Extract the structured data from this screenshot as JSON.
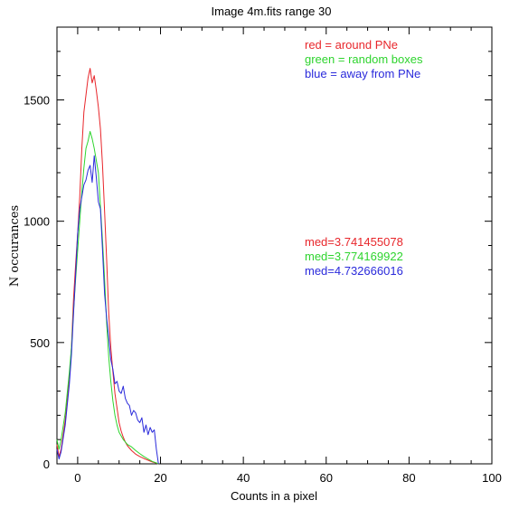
{
  "chart_data": {
    "type": "line",
    "title": "Image 4m.fits   range 30",
    "xlabel": "Counts in a pixel",
    "ylabel": "N occurances",
    "xlim": [
      -5,
      100
    ],
    "ylim": [
      0,
      1800
    ],
    "x_ticks": [
      0,
      20,
      40,
      60,
      80,
      100
    ],
    "y_ticks": [
      0,
      500,
      1000,
      1500
    ],
    "x_tick_labels": [
      "0",
      "20",
      "40",
      "60",
      "80",
      "100"
    ],
    "y_tick_labels": [
      "0",
      "500",
      "1000",
      "1500"
    ],
    "legend": [
      {
        "text": "red = around PNe",
        "color": "#e8262b"
      },
      {
        "text": "green = random boxes",
        "color": "#2ed42e"
      },
      {
        "text": "blue = away from PNe",
        "color": "#2a2adb"
      }
    ],
    "medians": [
      {
        "text": "med=3.741455078",
        "color": "#e8262b"
      },
      {
        "text": "med=3.774169922",
        "color": "#2ed42e"
      },
      {
        "text": "med=4.732666016",
        "color": "#2a2adb"
      }
    ],
    "series": [
      {
        "color": "#e8262b",
        "x": [
          -5,
          -4.5,
          -4,
          -3,
          -2,
          -1.5,
          -1,
          -0.5,
          0,
          0.5,
          1,
          1.5,
          2,
          2.5,
          3,
          3.5,
          4,
          4.5,
          5,
          5.5,
          6,
          6.5,
          7,
          7.5,
          8,
          8.5,
          9,
          9.5,
          10,
          10.5,
          11,
          11.5,
          12,
          13,
          14,
          15,
          16,
          17,
          18,
          19,
          19.5
        ],
        "y": [
          80,
          30,
          60,
          180,
          350,
          480,
          680,
          820,
          950,
          1100,
          1300,
          1450,
          1520,
          1590,
          1630,
          1570,
          1600,
          1540,
          1470,
          1380,
          1230,
          1040,
          840,
          620,
          480,
          380,
          290,
          230,
          170,
          135,
          110,
          90,
          75,
          55,
          40,
          30,
          22,
          15,
          8,
          3,
          0
        ]
      },
      {
        "color": "#2ed42e",
        "x": [
          -5,
          -4.5,
          -4,
          -3,
          -2,
          -1.5,
          -1,
          -0.5,
          0,
          0.5,
          1,
          1.5,
          2,
          2.5,
          3,
          3.5,
          4,
          4.5,
          5,
          5.5,
          6,
          6.5,
          7,
          7.5,
          8,
          8.5,
          9,
          9.5,
          10,
          10.5,
          11,
          11.5,
          12,
          13,
          14,
          15,
          16,
          17,
          18,
          19,
          19.5
        ],
        "y": [
          100,
          60,
          100,
          210,
          380,
          480,
          630,
          760,
          880,
          1000,
          1120,
          1220,
          1300,
          1330,
          1370,
          1340,
          1300,
          1250,
          1200,
          1060,
          920,
          760,
          580,
          440,
          340,
          260,
          200,
          160,
          130,
          115,
          100,
          90,
          80,
          70,
          55,
          42,
          30,
          20,
          10,
          4,
          0
        ]
      },
      {
        "color": "#2a2adb",
        "x": [
          -5,
          -4.5,
          -4,
          -3,
          -2,
          -1.5,
          -1,
          -0.5,
          0,
          0.5,
          1,
          1.5,
          2,
          2.5,
          3,
          3.5,
          4,
          4.5,
          5,
          5.5,
          6,
          6.5,
          7,
          7.5,
          8,
          8.5,
          9,
          9.5,
          10,
          10.5,
          11,
          11.5,
          12,
          12.5,
          13,
          13.5,
          14,
          14.5,
          15,
          15.5,
          16,
          16.5,
          17,
          17.5,
          18,
          18.5,
          19,
          19.5
        ],
        "y": [
          60,
          20,
          50,
          160,
          330,
          450,
          620,
          780,
          950,
          1050,
          1100,
          1150,
          1170,
          1210,
          1230,
          1160,
          1270,
          1180,
          1080,
          1050,
          880,
          700,
          600,
          520,
          430,
          390,
          330,
          340,
          300,
          290,
          320,
          270,
          250,
          240,
          200,
          220,
          210,
          180,
          170,
          190,
          130,
          160,
          120,
          150,
          130,
          140,
          60,
          0
        ]
      }
    ]
  }
}
